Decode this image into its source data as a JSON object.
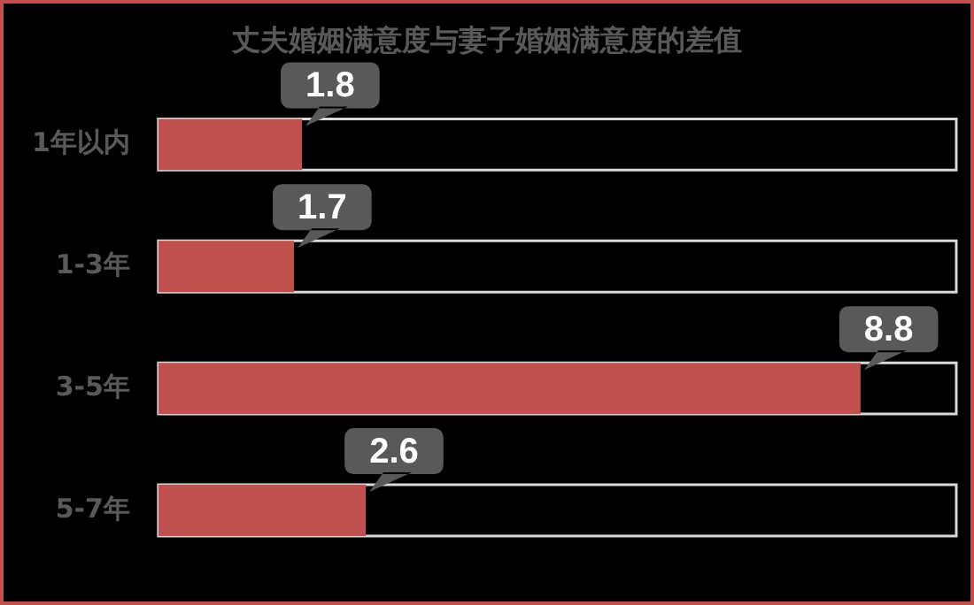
{
  "chart_data": {
    "type": "bar",
    "orientation": "horizontal",
    "title": "丈夫婚姻满意度与妻子婚姻满意度的差值",
    "categories": [
      "1年以内",
      "1-3年",
      "3-5年",
      "5-7年"
    ],
    "values": [
      1.8,
      1.7,
      8.8,
      2.6
    ],
    "color": "#c0504d",
    "xlim": [
      0,
      10
    ],
    "tick_labels": "y",
    "legend": false,
    "data_labels": true
  }
}
